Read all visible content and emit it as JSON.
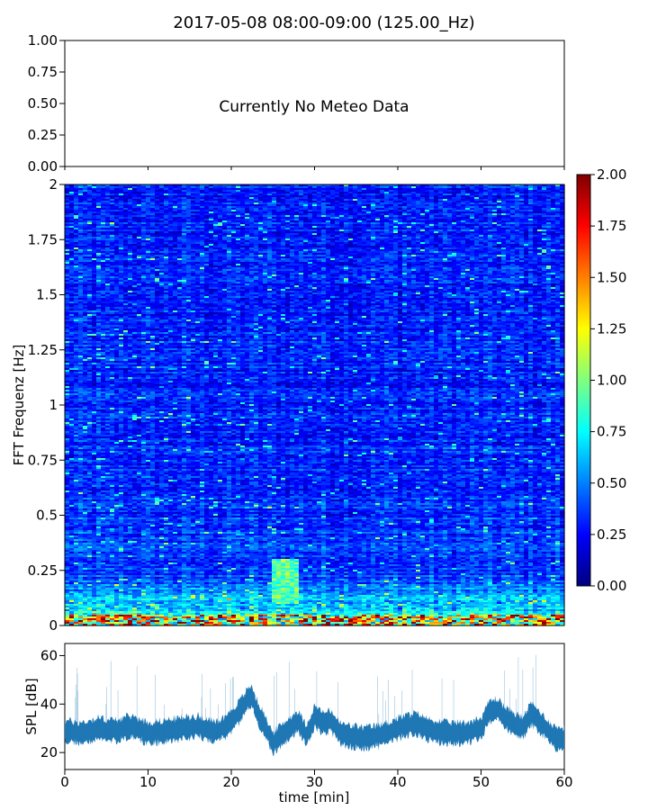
{
  "title": "2017-05-08 08:00-09:00 (125.00_Hz)",
  "chart_data": [
    {
      "panel": "meteo",
      "type": "line",
      "message": "Currently No Meteo Data",
      "ylim": [
        0,
        1
      ],
      "yticks": [
        "0.00",
        "0.25",
        "0.50",
        "0.75",
        "1.00"
      ],
      "series": []
    },
    {
      "panel": "spectrogram",
      "type": "heatmap",
      "ylabel": "FFT Frequenz [Hz]",
      "ylim": [
        0,
        2
      ],
      "yticks": [
        "0",
        "0.25",
        "0.5",
        "0.75",
        "1",
        "1.25",
        "1.5",
        "1.75",
        "2"
      ],
      "xlim": [
        0,
        60
      ],
      "colormap": "jet",
      "colorbar": {
        "range": [
          0,
          2
        ],
        "ticks": [
          "0.00",
          "0.25",
          "0.50",
          "0.75",
          "1.00",
          "1.25",
          "1.50",
          "1.75",
          "2.00"
        ]
      },
      "description_levels": {
        "background": 0.3,
        "low_freq_band": [
          0,
          0.05
        ],
        "low_freq_value": 1.6,
        "hotspot_time_range": [
          25,
          28
        ],
        "hotspot_freq_range": [
          0.1,
          0.3
        ],
        "hotspot_value": 0.9
      }
    },
    {
      "panel": "spl",
      "type": "line",
      "ylabel": "SPL [dB]",
      "xlabel": "time [min]",
      "xlim": [
        0,
        60
      ],
      "ylim": [
        13,
        65
      ],
      "xticks": [
        "0",
        "10",
        "20",
        "30",
        "40",
        "50",
        "60"
      ],
      "yticks": [
        "20",
        "40",
        "60"
      ],
      "color": "#1f77b4",
      "x": [
        0,
        2,
        4,
        6,
        8,
        10,
        12,
        14,
        16,
        18,
        19,
        20,
        21,
        22,
        22.5,
        23,
        24,
        25,
        26,
        27,
        28,
        29,
        30,
        31,
        32,
        33,
        34,
        36,
        38,
        40,
        42,
        44,
        46,
        48,
        50,
        51,
        52,
        53,
        54,
        55,
        56,
        57,
        58,
        59,
        60
      ],
      "y": [
        29,
        28,
        30,
        29,
        31,
        28,
        29,
        30,
        31,
        28,
        30,
        33,
        37,
        42,
        43,
        38,
        31,
        24,
        27,
        30,
        33,
        27,
        35,
        32,
        33,
        28,
        27,
        26,
        27,
        30,
        32,
        29,
        28,
        28,
        30,
        37,
        38,
        34,
        32,
        30,
        36,
        33,
        29,
        26,
        26
      ]
    }
  ]
}
